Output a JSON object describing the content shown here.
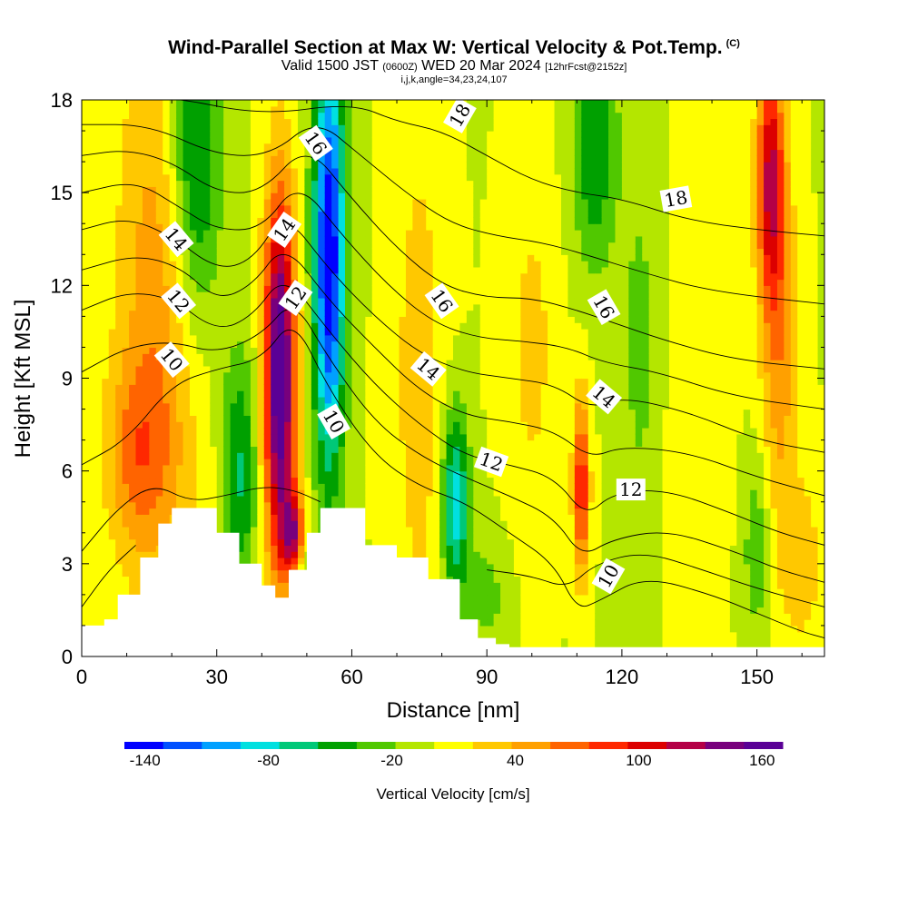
{
  "header": {
    "title": "Wind-Parallel Section at Max W: Vertical Velocity & Pot.Temp.",
    "copyright": "(C)",
    "valid_prefix": "Valid 1500 JST",
    "valid_utc": "(0600Z)",
    "valid_date": "WED 20 Mar 2024",
    "forecast_info": "[12hrFcst@2152z]",
    "ijk_info": "i,j,k,angle=34,23,24,107"
  },
  "chart_data": {
    "type": "heatmap",
    "xlabel": "Distance [nm]",
    "ylabel": "Height [Kft MSL]",
    "xlim": [
      0,
      165
    ],
    "ylim": [
      0,
      18
    ],
    "x_ticks": [
      0,
      30,
      60,
      90,
      120,
      150
    ],
    "y_ticks": [
      0,
      3,
      6,
      9,
      12,
      15,
      18
    ],
    "colorbar": {
      "label": "Vertical Velocity [cm/s]",
      "tick_labels": [
        "-140",
        "-80",
        "-20",
        "40",
        "100",
        "160"
      ],
      "tick_values": [
        -140,
        -80,
        -20,
        40,
        100,
        160
      ],
      "colors": [
        "#0000ff",
        "#0050ff",
        "#00a0ff",
        "#00e0e0",
        "#00c878",
        "#00a000",
        "#50c800",
        "#b4e600",
        "#ffff00",
        "#ffc800",
        "#ffa000",
        "#ff6400",
        "#ff2800",
        "#dc0000",
        "#b40046",
        "#78007d",
        "#5a0096"
      ],
      "levels_min": -150,
      "levels_max": 170
    },
    "terrain_kft": [
      [
        0,
        1.0
      ],
      [
        5,
        1.2
      ],
      [
        8,
        2.0
      ],
      [
        13,
        3.2
      ],
      [
        17,
        4.3
      ],
      [
        20,
        4.8
      ],
      [
        26,
        4.8
      ],
      [
        30,
        4.0
      ],
      [
        35,
        3.0
      ],
      [
        40,
        2.3
      ],
      [
        43,
        1.9
      ],
      [
        46,
        2.8
      ],
      [
        50,
        4.0
      ],
      [
        53,
        4.8
      ],
      [
        59,
        4.8
      ],
      [
        63,
        3.6
      ],
      [
        70,
        3.2
      ],
      [
        77,
        2.5
      ],
      [
        84,
        1.2
      ],
      [
        88,
        0.6
      ],
      [
        92,
        0.4
      ],
      [
        95,
        0.3
      ],
      [
        165,
        0.3
      ]
    ],
    "w_features": [
      {
        "x": 18,
        "z": 11.5,
        "sx": 10,
        "sz": 10,
        "amp": 55
      },
      {
        "x": 12,
        "z": 6.5,
        "sx": 7,
        "sz": 3,
        "amp": 45
      },
      {
        "x": 25,
        "z": 16,
        "sx": 6,
        "sz": 6,
        "amp": -80
      },
      {
        "x": 35,
        "z": 6,
        "sx": 4,
        "sz": 4,
        "amp": -60
      },
      {
        "x": 44,
        "z": 9,
        "sx": 3.5,
        "sz": 6,
        "amp": 180
      },
      {
        "x": 47,
        "z": 3.8,
        "sx": 2.5,
        "sz": 1.5,
        "amp": 110
      },
      {
        "x": 55,
        "z": 13,
        "sx": 3.5,
        "sz": 7,
        "amp": -150
      },
      {
        "x": 48,
        "z": 2.8,
        "sx": 3,
        "sz": 1,
        "amp": -40
      },
      {
        "x": 75,
        "z": 9,
        "sx": 6,
        "sz": 9,
        "amp": 30
      },
      {
        "x": 83,
        "z": 5,
        "sx": 3,
        "sz": 3,
        "amp": -90
      },
      {
        "x": 90,
        "z": 2,
        "sx": 5,
        "sz": 2,
        "amp": -25
      },
      {
        "x": 100,
        "z": 10,
        "sx": 6,
        "sz": 6,
        "amp": 25
      },
      {
        "x": 111,
        "z": 5.5,
        "sx": 1.8,
        "sz": 3,
        "amp": 95
      },
      {
        "x": 114,
        "z": 16.5,
        "sx": 5,
        "sz": 4,
        "amp": -55
      },
      {
        "x": 124,
        "z": 10,
        "sx": 4,
        "sz": 6,
        "amp": -25
      },
      {
        "x": 137,
        "z": 8,
        "sx": 7,
        "sz": 8,
        "amp": 10
      },
      {
        "x": 153,
        "z": 15.5,
        "sx": 3,
        "sz": 4,
        "amp": 110
      },
      {
        "x": 155,
        "z": 10,
        "sx": 4,
        "sz": 6,
        "amp": 50
      },
      {
        "x": 150,
        "z": 3.5,
        "sx": 3,
        "sz": 3,
        "amp": -35
      },
      {
        "x": 160,
        "z": 3,
        "sx": 5,
        "sz": 3,
        "amp": 30
      }
    ],
    "w_background": 0,
    "theta_contours": [
      {
        "label": "10",
        "points": [
          [
            0,
            6.2
          ],
          [
            10,
            7.0
          ],
          [
            20,
            8.8
          ],
          [
            30,
            9.3
          ],
          [
            40,
            9.6
          ],
          [
            47,
            11.0
          ],
          [
            55,
            8.6
          ],
          [
            65,
            6.5
          ],
          [
            75,
            5.5
          ],
          [
            85,
            5.0
          ],
          [
            95,
            4.0
          ],
          [
            105,
            3.0
          ],
          [
            110,
            1.5
          ],
          [
            115,
            1.8
          ],
          [
            125,
            2.6
          ],
          [
            140,
            2.0
          ],
          [
            150,
            1.4
          ],
          [
            160,
            0.8
          ],
          [
            165,
            0.6
          ]
        ]
      },
      {
        "label": "12",
        "points": [
          [
            0,
            11.2
          ],
          [
            10,
            11.8
          ],
          [
            20,
            11.6
          ],
          [
            30,
            10.5
          ],
          [
            38,
            11.0
          ],
          [
            45,
            12.4
          ],
          [
            55,
            10.5
          ],
          [
            65,
            8.8
          ],
          [
            75,
            7.5
          ],
          [
            85,
            6.5
          ],
          [
            95,
            6.2
          ],
          [
            105,
            5.8
          ],
          [
            112,
            4.5
          ],
          [
            118,
            5.3
          ],
          [
            130,
            5.4
          ],
          [
            145,
            4.6
          ],
          [
            155,
            4.0
          ],
          [
            165,
            3.6
          ]
        ]
      },
      {
        "label": "14",
        "points": [
          [
            0,
            13.8
          ],
          [
            10,
            14.2
          ],
          [
            20,
            13.6
          ],
          [
            30,
            12.5
          ],
          [
            38,
            12.8
          ],
          [
            45,
            14.4
          ],
          [
            55,
            12.5
          ],
          [
            65,
            11.0
          ],
          [
            75,
            9.8
          ],
          [
            85,
            9.2
          ],
          [
            95,
            9.0
          ],
          [
            105,
            8.8
          ],
          [
            113,
            8.0
          ],
          [
            120,
            8.4
          ],
          [
            135,
            7.9
          ],
          [
            150,
            7.0
          ],
          [
            165,
            6.6
          ]
        ]
      },
      {
        "label": "16",
        "points": [
          [
            0,
            16.2
          ],
          [
            10,
            16.4
          ],
          [
            20,
            16.0
          ],
          [
            30,
            15.0
          ],
          [
            40,
            15.0
          ],
          [
            50,
            16.6
          ],
          [
            60,
            14.8
          ],
          [
            70,
            13.2
          ],
          [
            80,
            12.0
          ],
          [
            90,
            11.6
          ],
          [
            100,
            11.6
          ],
          [
            110,
            11.2
          ],
          [
            118,
            10.8
          ],
          [
            130,
            10.2
          ],
          [
            145,
            9.6
          ],
          [
            165,
            9.3
          ]
        ]
      },
      {
        "label": "18",
        "points": [
          [
            0,
            18.2
          ],
          [
            20,
            18.1
          ],
          [
            40,
            17.5
          ],
          [
            60,
            17.9
          ],
          [
            70,
            17.3
          ],
          [
            80,
            17.0
          ],
          [
            90,
            16.2
          ],
          [
            100,
            15.4
          ],
          [
            110,
            15.0
          ],
          [
            120,
            14.8
          ],
          [
            135,
            14.1
          ],
          [
            150,
            13.8
          ],
          [
            165,
            13.6
          ]
        ]
      }
    ],
    "extra_contours": [
      [
        [
          0,
          3.4
        ],
        [
          8,
          4.8
        ],
        [
          16,
          5.6
        ],
        [
          24,
          5.0
        ],
        [
          32,
          5.2
        ],
        [
          40,
          5.5
        ],
        [
          47,
          5.4
        ],
        [
          53,
          5.0
        ]
      ],
      [
        [
          0,
          1.6
        ],
        [
          6,
          2.8
        ],
        [
          12,
          3.6
        ]
      ],
      [
        [
          90,
          2.8
        ],
        [
          100,
          2.6
        ],
        [
          108,
          2.2
        ],
        [
          114,
          3.0
        ],
        [
          125,
          3.4
        ],
        [
          138,
          2.8
        ],
        [
          150,
          2.2
        ],
        [
          165,
          1.6
        ]
      ],
      [
        [
          0,
          15.0
        ],
        [
          12,
          15.4
        ],
        [
          22,
          14.5
        ],
        [
          30,
          13.8
        ],
        [
          40,
          13.8
        ],
        [
          48,
          15.4
        ],
        [
          58,
          13.6
        ],
        [
          68,
          12.0
        ],
        [
          78,
          10.8
        ],
        [
          88,
          10.3
        ],
        [
          98,
          10.2
        ],
        [
          108,
          10.0
        ],
        [
          116,
          9.5
        ],
        [
          128,
          9.2
        ],
        [
          145,
          8.4
        ],
        [
          165,
          8.0
        ]
      ],
      [
        [
          0,
          12.5
        ],
        [
          12,
          13.0
        ],
        [
          22,
          12.6
        ],
        [
          30,
          11.5
        ],
        [
          38,
          12.0
        ],
        [
          45,
          13.4
        ],
        [
          55,
          11.5
        ],
        [
          65,
          10.0
        ],
        [
          75,
          8.6
        ],
        [
          85,
          7.8
        ],
        [
          95,
          7.6
        ],
        [
          105,
          7.3
        ],
        [
          113,
          6.4
        ],
        [
          120,
          6.8
        ],
        [
          135,
          6.6
        ],
        [
          150,
          5.8
        ],
        [
          165,
          5.2
        ]
      ],
      [
        [
          0,
          9.2
        ],
        [
          10,
          10.0
        ],
        [
          20,
          10.2
        ],
        [
          30,
          9.8
        ],
        [
          40,
          10.4
        ],
        [
          47,
          11.6
        ],
        [
          55,
          9.6
        ],
        [
          65,
          7.6
        ],
        [
          75,
          6.5
        ],
        [
          85,
          5.8
        ],
        [
          95,
          5.2
        ],
        [
          105,
          4.5
        ],
        [
          111,
          3.2
        ],
        [
          118,
          3.8
        ],
        [
          130,
          4.1
        ],
        [
          145,
          3.4
        ],
        [
          155,
          2.8
        ],
        [
          165,
          2.4
        ]
      ],
      [
        [
          0,
          17.2
        ],
        [
          15,
          17.2
        ],
        [
          30,
          16.2
        ],
        [
          42,
          16.2
        ],
        [
          52,
          17.4
        ],
        [
          62,
          16.2
        ],
        [
          72,
          15.0
        ],
        [
          82,
          14.0
        ],
        [
          92,
          13.6
        ],
        [
          102,
          13.4
        ],
        [
          112,
          13.0
        ],
        [
          125,
          12.4
        ],
        [
          140,
          11.8
        ],
        [
          165,
          11.4
        ]
      ]
    ],
    "contour_label_positions": [
      {
        "label": "10",
        "x": 20,
        "z": 9.6,
        "angle": 50
      },
      {
        "label": "12",
        "x": 21.5,
        "z": 11.5,
        "angle": 50
      },
      {
        "label": "14",
        "x": 21,
        "z": 13.5,
        "angle": 50
      },
      {
        "label": "10",
        "x": 56,
        "z": 7.6,
        "angle": 60
      },
      {
        "label": "12",
        "x": 47.5,
        "z": 11.6,
        "angle": -55
      },
      {
        "label": "14",
        "x": 45,
        "z": 13.8,
        "angle": -55
      },
      {
        "label": "16",
        "x": 52,
        "z": 16.6,
        "angle": 55
      },
      {
        "label": "14",
        "x": 77,
        "z": 9.3,
        "angle": 40
      },
      {
        "label": "16",
        "x": 80,
        "z": 11.5,
        "angle": 55
      },
      {
        "label": "18",
        "x": 84,
        "z": 17.5,
        "angle": -60
      },
      {
        "label": "12",
        "x": 91,
        "z": 6.3,
        "angle": 20
      },
      {
        "label": "14",
        "x": 116,
        "z": 8.4,
        "angle": 40
      },
      {
        "label": "16",
        "x": 116,
        "z": 11.3,
        "angle": 60
      },
      {
        "label": "18",
        "x": 132,
        "z": 14.8,
        "angle": -10
      },
      {
        "label": "12",
        "x": 122,
        "z": 5.4,
        "angle": 0
      },
      {
        "label": "10",
        "x": 117,
        "z": 2.6,
        "angle": -60
      }
    ]
  }
}
